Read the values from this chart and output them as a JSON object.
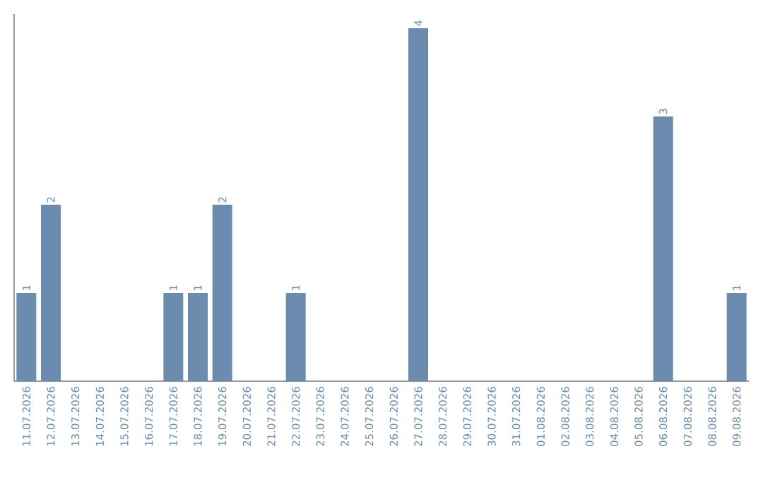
{
  "chart_data": {
    "type": "bar",
    "categories": [
      "11.07.2026",
      "12.07.2026",
      "13.07.2026",
      "14.07.2026",
      "15.07.2026",
      "16.07.2026",
      "17.07.2026",
      "18.07.2026",
      "19.07.2026",
      "20.07.2026",
      "21.07.2026",
      "22.07.2026",
      "23.07.2026",
      "24.07.2026",
      "25.07.2026",
      "26.07.2026",
      "27.07.2026",
      "28.07.2026",
      "29.07.2026",
      "30.07.2026",
      "31.07.2026",
      "01.08.2026",
      "02.08.2026",
      "03.08.2026",
      "04.08.2026",
      "05.08.2026",
      "06.08.2026",
      "07.08.2026",
      "08.08.2026",
      "09.08.2026"
    ],
    "values": [
      1,
      2,
      0,
      0,
      0,
      0,
      1,
      1,
      2,
      0,
      0,
      1,
      0,
      0,
      0,
      0,
      4,
      0,
      0,
      0,
      0,
      0,
      0,
      0,
      0,
      0,
      3,
      0,
      0,
      1
    ],
    "value_labels": [
      "1",
      "2",
      null,
      null,
      null,
      null,
      "1",
      "1",
      "2",
      null,
      null,
      "1",
      null,
      null,
      null,
      null,
      "4",
      null,
      null,
      null,
      null,
      null,
      null,
      null,
      null,
      null,
      "3",
      null,
      null,
      "1"
    ],
    "color": "#6b8cae",
    "tick_labels": "x"
  }
}
